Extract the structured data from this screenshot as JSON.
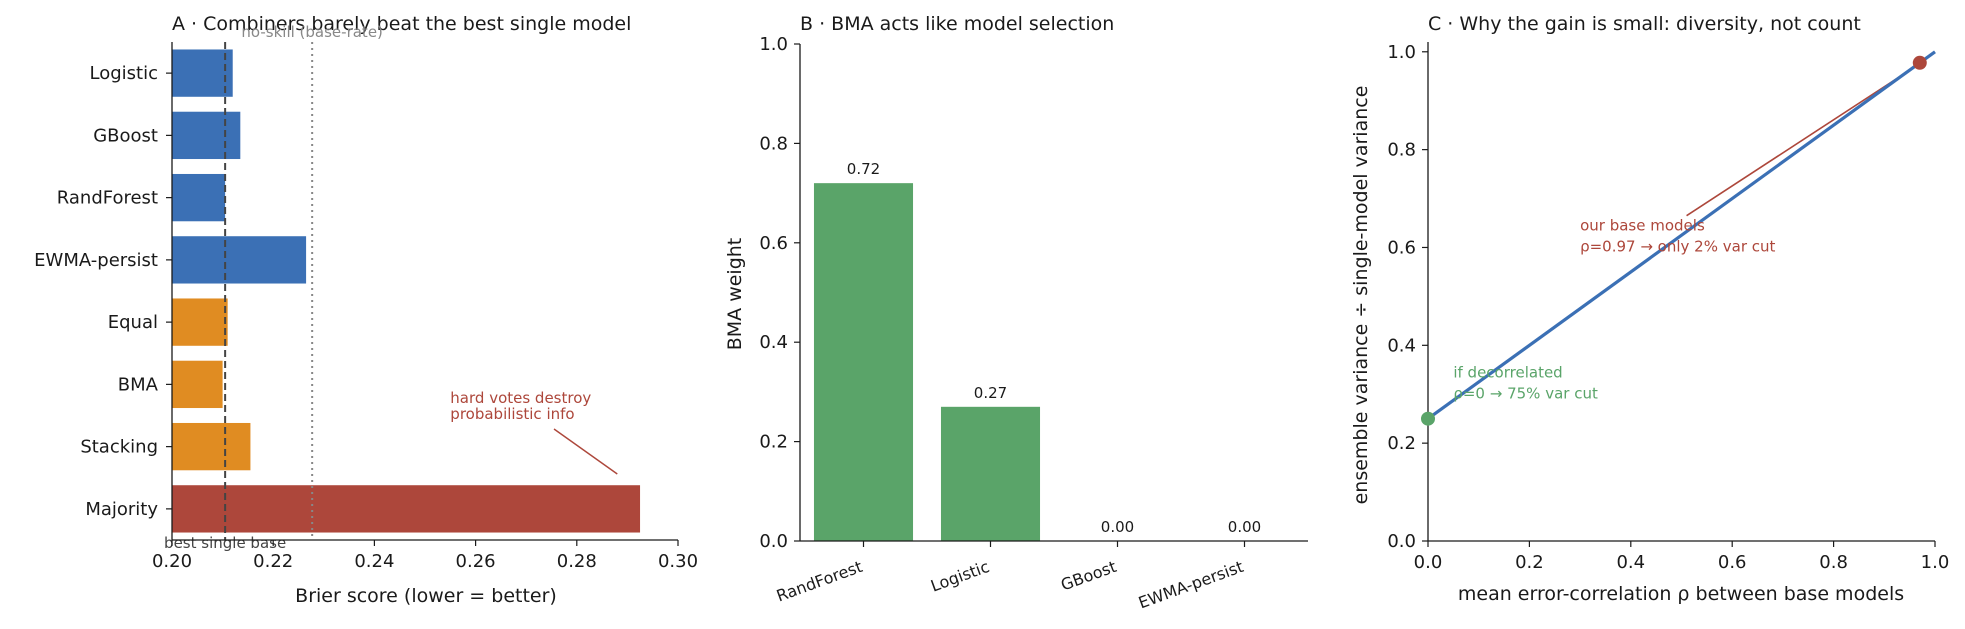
{
  "chart_data": [
    {
      "panel": "A",
      "type": "bar",
      "orientation": "horizontal",
      "title": "A · Combiners barely beat the best single model",
      "xlabel": "Brier score (lower = better)",
      "xlim": [
        0.2,
        0.3
      ],
      "xticks": [
        "0.20",
        "0.22",
        "0.24",
        "0.26",
        "0.28",
        "0.30"
      ],
      "categories": [
        "Logistic",
        "GBoost",
        "RandForest",
        "EWMA-persist",
        "Equal",
        "BMA",
        "Stacking",
        "Majority"
      ],
      "values": [
        0.212,
        0.2135,
        0.2105,
        0.2265,
        0.211,
        0.21,
        0.2155,
        0.2925
      ],
      "groups": [
        "single",
        "single",
        "single",
        "single",
        "combiner",
        "combiner",
        "combiner",
        "majority"
      ],
      "colors": {
        "single": "#3b70b5",
        "combiner": "#e08c22",
        "majority": "#ad473b"
      },
      "reference_lines": [
        {
          "x": 0.2105,
          "label": "best single base",
          "color": "#444444",
          "style": "dashed"
        },
        {
          "x": 0.2277,
          "label": "no-skill (base-rate)",
          "color": "#888888",
          "style": "dotted"
        }
      ],
      "annotation": {
        "lines": [
          "hard votes destroy",
          "probabilistic info"
        ],
        "text_at": [
          0.255,
          2.1
        ],
        "arrow_to": [
          0.288,
          0.02
        ],
        "color": "#ad473b"
      }
    },
    {
      "panel": "B",
      "type": "bar",
      "title": "B · BMA acts like model selection",
      "ylabel": "BMA weight",
      "ylim": [
        0,
        1.0
      ],
      "yticks": [
        "0.0",
        "0.2",
        "0.4",
        "0.6",
        "0.8",
        "1.0"
      ],
      "categories": [
        "RandForest",
        "Logistic",
        "GBoost",
        "EWMA-persist"
      ],
      "values": [
        0.72,
        0.27,
        0.0,
        0.0
      ],
      "value_labels": [
        "0.72",
        "0.27",
        "0.00",
        "0.00"
      ],
      "color": "#5aa469"
    },
    {
      "panel": "C",
      "type": "line",
      "title": "C · Why the gain is small: diversity, not count",
      "xlabel": "mean error-correlation ρ between base models",
      "ylabel": "ensemble variance ÷ single-model variance",
      "xlim": [
        0,
        1.0
      ],
      "ylim": [
        0,
        1.02
      ],
      "xticks": [
        "0.0",
        "0.2",
        "0.4",
        "0.6",
        "0.8",
        "1.0"
      ],
      "yticks": [
        "0.0",
        "0.2",
        "0.4",
        "0.6",
        "0.8",
        "1.0"
      ],
      "line": {
        "x": [
          0,
          1
        ],
        "y": [
          0.25,
          1.0
        ],
        "color": "#3b70b5"
      },
      "points": [
        {
          "x": 0.0,
          "y": 0.25,
          "color": "#5aa469"
        },
        {
          "x": 0.97,
          "y": 0.9775,
          "color": "#ad473b"
        }
      ],
      "annotations": [
        {
          "lines": [
            "our base models",
            "ρ=0.97 → only 2% var cut"
          ],
          "at": [
            0.3,
            0.62
          ],
          "arrow_to": [
            0.97,
            0.9775
          ],
          "color": "#ad473b"
        },
        {
          "lines": [
            "if decorrelated",
            "ρ=0 → 75% var cut"
          ],
          "at": [
            0.05,
            0.32
          ],
          "color": "#5aa469"
        }
      ]
    }
  ]
}
